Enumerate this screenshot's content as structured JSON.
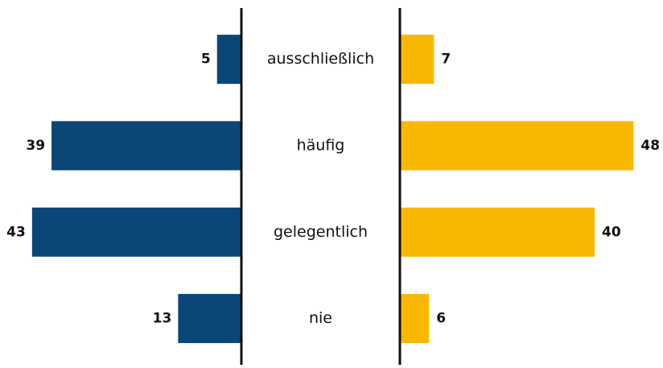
{
  "chart_data": {
    "type": "butterfly",
    "categories": [
      "ausschließlich",
      "häufig",
      "gelegentlich",
      "nie"
    ],
    "series": [
      {
        "color": "#0a4677",
        "values": [
          5,
          39,
          43,
          13
        ]
      },
      {
        "color": "#f8b800",
        "values": [
          7,
          48,
          40,
          6
        ]
      }
    ]
  }
}
